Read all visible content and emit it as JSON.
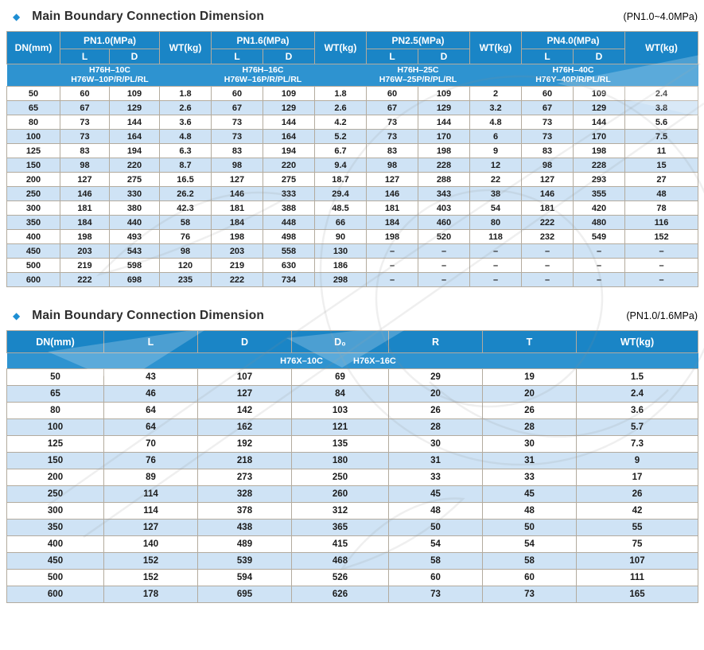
{
  "page": {
    "bullet": "◆",
    "section1": {
      "title": "Main Boundary Connection Dimension",
      "pressure_note": "(PN1.0~4.0MPa)"
    },
    "section2": {
      "title": "Main Boundary Connection Dimension",
      "pressure_note": "(PN1.0/1.6MPa)"
    },
    "colors": {
      "header_blue": "#1a85c6",
      "model_band_blue": "#2e93d0",
      "alt_row_blue": "#cfe3f5",
      "accent_diamond": "#1e8ed3"
    }
  },
  "table1": {
    "col_dn": "DN(mm)",
    "col_wt": "WT(kg)",
    "col_l": "L",
    "col_d": "D",
    "groups": [
      {
        "label": "PN1.0(MPa)",
        "model_line1": "H76H–10C",
        "model_line2": "H76W–10P/R/PL/RL"
      },
      {
        "label": "PN1.6(MPa)",
        "model_line1": "H76H–16C",
        "model_line2": "H76W–16P/R/PL/RL"
      },
      {
        "label": "PN2.5(MPa)",
        "model_line1": "H76H–25C",
        "model_line2": "H76W–25P/R/PL/RL"
      },
      {
        "label": "PN4.0(MPa)",
        "model_line1": "H76H–40C",
        "model_line2": "H76Y–40P/R/PL/RL"
      }
    ],
    "rows": [
      [
        "50",
        "60",
        "109",
        "1.8",
        "60",
        "109",
        "1.8",
        "60",
        "109",
        "2",
        "60",
        "109",
        "2.4"
      ],
      [
        "65",
        "67",
        "129",
        "2.6",
        "67",
        "129",
        "2.6",
        "67",
        "129",
        "3.2",
        "67",
        "129",
        "3.8"
      ],
      [
        "80",
        "73",
        "144",
        "3.6",
        "73",
        "144",
        "4.2",
        "73",
        "144",
        "4.8",
        "73",
        "144",
        "5.6"
      ],
      [
        "100",
        "73",
        "164",
        "4.8",
        "73",
        "164",
        "5.2",
        "73",
        "170",
        "6",
        "73",
        "170",
        "7.5"
      ],
      [
        "125",
        "83",
        "194",
        "6.3",
        "83",
        "194",
        "6.7",
        "83",
        "198",
        "9",
        "83",
        "198",
        "11"
      ],
      [
        "150",
        "98",
        "220",
        "8.7",
        "98",
        "220",
        "9.4",
        "98",
        "228",
        "12",
        "98",
        "228",
        "15"
      ],
      [
        "200",
        "127",
        "275",
        "16.5",
        "127",
        "275",
        "18.7",
        "127",
        "288",
        "22",
        "127",
        "293",
        "27"
      ],
      [
        "250",
        "146",
        "330",
        "26.2",
        "146",
        "333",
        "29.4",
        "146",
        "343",
        "38",
        "146",
        "355",
        "48"
      ],
      [
        "300",
        "181",
        "380",
        "42.3",
        "181",
        "388",
        "48.5",
        "181",
        "403",
        "54",
        "181",
        "420",
        "78"
      ],
      [
        "350",
        "184",
        "440",
        "58",
        "184",
        "448",
        "66",
        "184",
        "460",
        "80",
        "222",
        "480",
        "116"
      ],
      [
        "400",
        "198",
        "493",
        "76",
        "198",
        "498",
        "90",
        "198",
        "520",
        "118",
        "232",
        "549",
        "152"
      ],
      [
        "450",
        "203",
        "543",
        "98",
        "203",
        "558",
        "130",
        "–",
        "–",
        "–",
        "–",
        "–",
        "–"
      ],
      [
        "500",
        "219",
        "598",
        "120",
        "219",
        "630",
        "186",
        "–",
        "–",
        "–",
        "–",
        "–",
        "–"
      ],
      [
        "600",
        "222",
        "698",
        "235",
        "222",
        "734",
        "298",
        "–",
        "–",
        "–",
        "–",
        "–",
        "–"
      ]
    ]
  },
  "table2": {
    "headers": [
      "DN(mm)",
      "L",
      "D",
      "D₀",
      "R",
      "T",
      "WT(kg)"
    ],
    "models": [
      "H76X–10C",
      "H76X–16C"
    ],
    "rows": [
      [
        "50",
        "43",
        "107",
        "69",
        "29",
        "19",
        "1.5"
      ],
      [
        "65",
        "46",
        "127",
        "84",
        "20",
        "20",
        "2.4"
      ],
      [
        "80",
        "64",
        "142",
        "103",
        "26",
        "26",
        "3.6"
      ],
      [
        "100",
        "64",
        "162",
        "121",
        "28",
        "28",
        "5.7"
      ],
      [
        "125",
        "70",
        "192",
        "135",
        "30",
        "30",
        "7.3"
      ],
      [
        "150",
        "76",
        "218",
        "180",
        "31",
        "31",
        "9"
      ],
      [
        "200",
        "89",
        "273",
        "250",
        "33",
        "33",
        "17"
      ],
      [
        "250",
        "114",
        "328",
        "260",
        "45",
        "45",
        "26"
      ],
      [
        "300",
        "114",
        "378",
        "312",
        "48",
        "48",
        "42"
      ],
      [
        "350",
        "127",
        "438",
        "365",
        "50",
        "50",
        "55"
      ],
      [
        "400",
        "140",
        "489",
        "415",
        "54",
        "54",
        "75"
      ],
      [
        "450",
        "152",
        "539",
        "468",
        "58",
        "58",
        "107"
      ],
      [
        "500",
        "152",
        "594",
        "526",
        "60",
        "60",
        "111"
      ],
      [
        "600",
        "178",
        "695",
        "626",
        "73",
        "73",
        "165"
      ]
    ]
  }
}
